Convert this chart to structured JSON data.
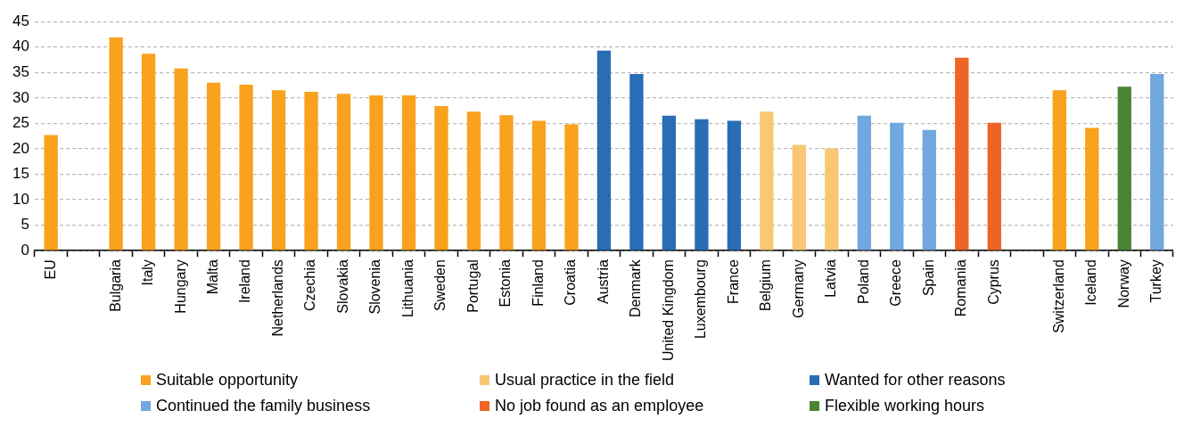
{
  "chart_data": {
    "type": "bar",
    "categories": [
      "EU",
      null,
      "Bulgaria",
      "Italy",
      "Hungary",
      "Malta",
      "Ireland",
      "Netherlands",
      "Czechia",
      "Slovakia",
      "Slovenia",
      "Lithuania",
      "Sweden",
      "Portugal",
      "Estonia",
      "Finland",
      "Croatia",
      "Austria",
      "Denmark",
      "United Kingdom",
      "Luxembourg",
      "France",
      "Belgium",
      "Germany",
      "Latvia",
      "Poland",
      "Greece",
      "Spain",
      "Romania",
      "Cyprus",
      null,
      "Switzerland",
      "Iceland",
      "Norway",
      "Turkey"
    ],
    "series": [
      {
        "name": "Suitable opportunity",
        "color": "#f8a21d",
        "values": [
          22.7,
          null,
          41.9,
          38.7,
          35.8,
          33.0,
          32.6,
          31.5,
          31.2,
          30.8,
          30.5,
          30.5,
          28.4,
          27.3,
          26.6,
          25.5,
          24.8,
          null,
          null,
          null,
          null,
          null,
          null,
          null,
          null,
          null,
          null,
          null,
          null,
          null,
          null,
          31.5,
          24.1,
          null,
          null
        ]
      },
      {
        "name": "Usual practice in the field",
        "color": "#f9c774",
        "values": [
          null,
          null,
          null,
          null,
          null,
          null,
          null,
          null,
          null,
          null,
          null,
          null,
          null,
          null,
          null,
          null,
          null,
          null,
          null,
          null,
          null,
          null,
          27.3,
          20.8,
          20.1,
          null,
          null,
          null,
          null,
          null,
          null,
          null,
          null,
          null,
          null
        ]
      },
      {
        "name": "Wanted for other reasons",
        "color": "#296eb4",
        "values": [
          null,
          null,
          null,
          null,
          null,
          null,
          null,
          null,
          null,
          null,
          null,
          null,
          null,
          null,
          null,
          null,
          null,
          39.3,
          34.7,
          26.5,
          25.8,
          25.5,
          null,
          null,
          null,
          null,
          null,
          null,
          null,
          null,
          null,
          null,
          null,
          null,
          null
        ]
      },
      {
        "name": "Continued the family business",
        "color": "#72a7df",
        "values": [
          null,
          null,
          null,
          null,
          null,
          null,
          null,
          null,
          null,
          null,
          null,
          null,
          null,
          null,
          null,
          null,
          null,
          null,
          null,
          null,
          null,
          null,
          null,
          null,
          null,
          26.5,
          25.1,
          23.7,
          null,
          null,
          null,
          null,
          null,
          null,
          34.7
        ]
      },
      {
        "name": "No job found as an employee",
        "color": "#ee6425",
        "values": [
          null,
          null,
          null,
          null,
          null,
          null,
          null,
          null,
          null,
          null,
          null,
          null,
          null,
          null,
          null,
          null,
          null,
          null,
          null,
          null,
          null,
          null,
          null,
          null,
          null,
          null,
          null,
          null,
          37.9,
          25.1,
          null,
          null,
          null,
          null,
          null
        ]
      },
      {
        "name": "Flexible working hours",
        "color": "#4a8432",
        "values": [
          null,
          null,
          null,
          null,
          null,
          null,
          null,
          null,
          null,
          null,
          null,
          null,
          null,
          null,
          null,
          null,
          null,
          null,
          null,
          null,
          null,
          null,
          null,
          null,
          null,
          null,
          null,
          null,
          null,
          null,
          null,
          null,
          null,
          32.2,
          null
        ]
      }
    ],
    "ylim": [
      0,
      45
    ],
    "yticks": [
      0,
      5,
      10,
      15,
      20,
      25,
      30,
      35,
      40,
      45
    ],
    "grid": "y",
    "legend": "bottom"
  }
}
